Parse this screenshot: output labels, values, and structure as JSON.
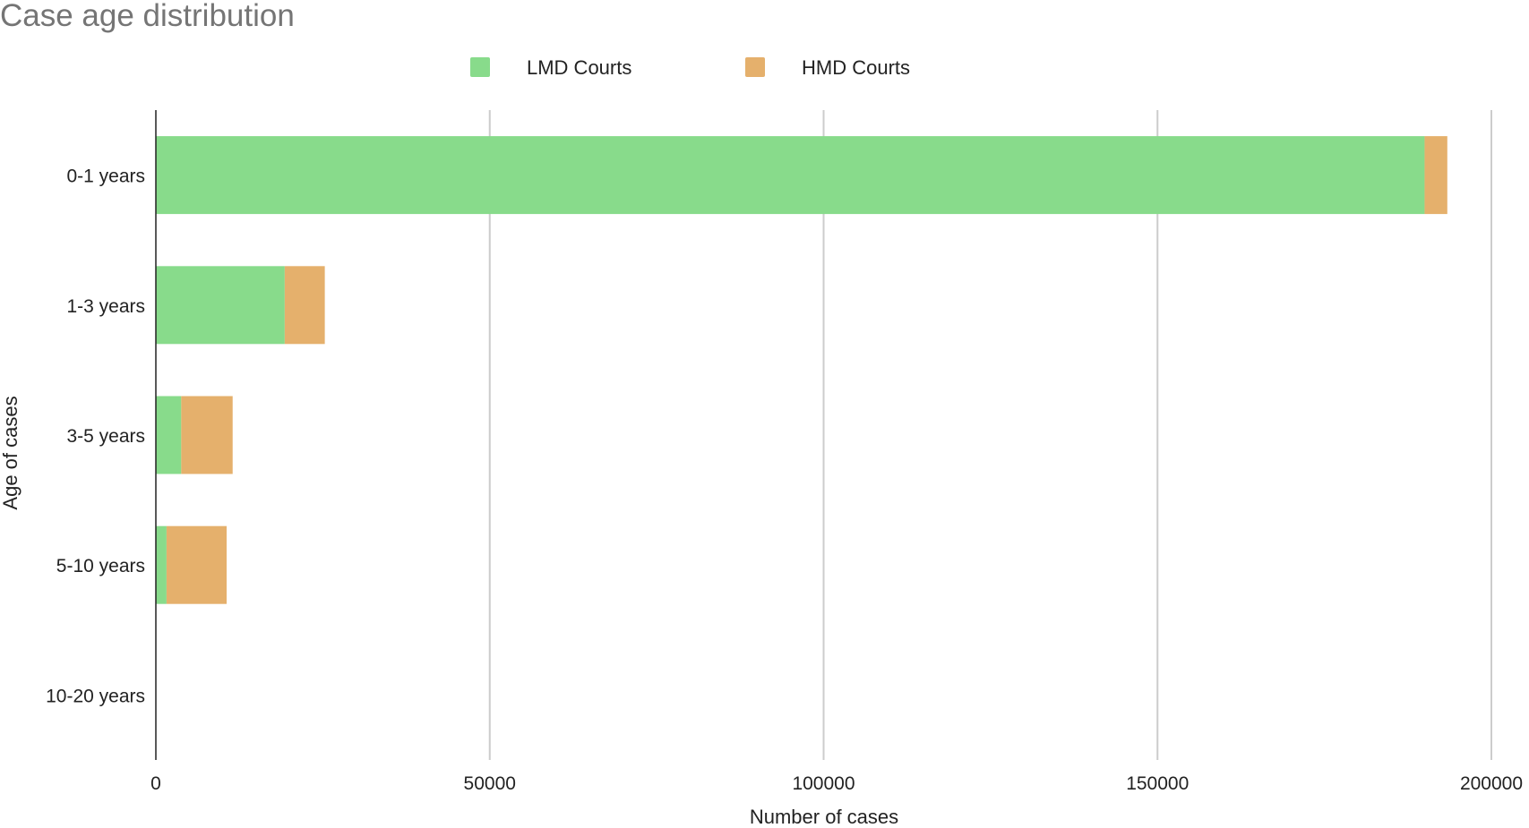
{
  "chart_data": {
    "type": "bar",
    "orientation": "horizontal",
    "stacked": true,
    "title": "Case age distribution",
    "xlabel": "Number of cases",
    "ylabel": "Age of cases",
    "xlim": [
      0,
      200000
    ],
    "xticks": [
      "0",
      "50000",
      "100000",
      "150000",
      "200000"
    ],
    "grid": true,
    "legend_position": "top",
    "categories": [
      "0-1 years",
      "1-3 years",
      "3-5 years",
      "5-10 years",
      "10-20 years"
    ],
    "series": [
      {
        "name": "LMD Courts",
        "color": "#88db8b",
        "values": [
          190000,
          19300,
          3800,
          1600,
          0
        ]
      },
      {
        "name": "HMD Courts",
        "color": "#e5b06c",
        "values": [
          3400,
          6000,
          7700,
          9000,
          0
        ]
      }
    ]
  }
}
